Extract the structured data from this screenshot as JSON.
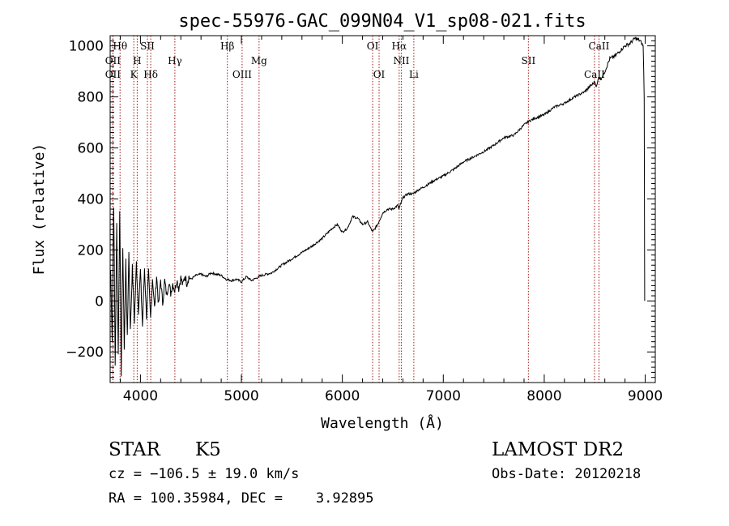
{
  "chart_data": {
    "type": "line",
    "title": "spec-55976-GAC_099N04_V1_sp08-021.fits",
    "xlabel": "Wavelength (Å)",
    "ylabel": "Flux (relative)",
    "xlim": [
      3700,
      9100
    ],
    "ylim": [
      -320,
      1040
    ],
    "xticks": [
      4000,
      5000,
      6000,
      7000,
      8000,
      9000
    ],
    "yticks": [
      -200,
      0,
      200,
      400,
      600,
      800,
      1000
    ],
    "grid": false,
    "line_color": "#000000",
    "marker_color": "#a01818",
    "series": [
      {
        "x": [
          3705,
          3720,
          3735,
          3750,
          3765,
          3780,
          3795,
          3810,
          3825,
          3840,
          3855,
          3870,
          3885,
          3900,
          3920,
          3940,
          3960,
          3980,
          4000,
          4020,
          4040,
          4060,
          4080,
          4100,
          4120,
          4140,
          4160,
          4180,
          4200,
          4220,
          4240,
          4260,
          4280,
          4300,
          4320,
          4340,
          4360,
          4380,
          4400,
          4420,
          4440,
          4460,
          4480,
          4500,
          4550,
          4600,
          4650,
          4700,
          4750,
          4800,
          4850,
          4900,
          4950,
          5000,
          5050,
          5100,
          5150,
          5200,
          5300,
          5400,
          5500,
          5600,
          5700,
          5800,
          5900,
          5950,
          6000,
          6050,
          6100,
          6150,
          6200,
          6250,
          6300,
          6350,
          6400,
          6450,
          6500,
          6550,
          6560,
          6600,
          6650,
          6700,
          6750,
          6800,
          6900,
          7000,
          7100,
          7200,
          7300,
          7400,
          7500,
          7600,
          7700,
          7800,
          7850,
          7900,
          8000,
          8100,
          8200,
          8300,
          8400,
          8450,
          8480,
          8500,
          8520,
          8540,
          8560,
          8600,
          8650,
          8700,
          8750,
          8800,
          8850,
          8900,
          8950,
          8980,
          8990,
          8995
        ],
        "y": [
          120,
          -150,
          380,
          -250,
          300,
          -200,
          350,
          -280,
          220,
          -180,
          160,
          -150,
          190,
          -120,
          130,
          -80,
          150,
          -40,
          120,
          -100,
          130,
          -60,
          110,
          -70,
          90,
          -30,
          100,
          -20,
          85,
          -10,
          80,
          20,
          75,
          30,
          70,
          40,
          85,
          50,
          90,
          60,
          100,
          70,
          95,
          85,
          100,
          105,
          95,
          110,
          105,
          100,
          85,
          80,
          85,
          75,
          95,
          80,
          90,
          100,
          110,
          140,
          165,
          190,
          215,
          245,
          285,
          300,
          270,
          285,
          330,
          325,
          300,
          310,
          270,
          300,
          345,
          360,
          360,
          375,
          360,
          405,
          420,
          420,
          435,
          445,
          470,
          490,
          515,
          545,
          565,
          585,
          610,
          640,
          650,
          690,
          705,
          715,
          730,
          760,
          775,
          800,
          820,
          840,
          850,
          860,
          840,
          880,
          870,
          900,
          950,
          960,
          980,
          1000,
          1010,
          1030,
          1020,
          1000,
          800,
          0
        ]
      }
    ],
    "lines": [
      {
        "label": "Hθ",
        "x": 3798,
        "row": 0
      },
      {
        "label": "OII",
        "x": 3727,
        "row": 1
      },
      {
        "label": "OII",
        "x": 3727,
        "row": 2
      },
      {
        "label": "H",
        "x": 3968,
        "row": 1
      },
      {
        "label": "K",
        "x": 3934,
        "row": 2
      },
      {
        "label": "SII",
        "x": 4069,
        "row": 0
      },
      {
        "label": "Hδ",
        "x": 4102,
        "row": 2
      },
      {
        "label": "Hγ",
        "x": 4341,
        "row": 1
      },
      {
        "label": "Hβ",
        "x": 4861,
        "row": 0
      },
      {
        "label": "Mg",
        "x": 5175,
        "row": 1
      },
      {
        "label": "OIII",
        "x": 5007,
        "row": 2
      },
      {
        "label": "OI",
        "x": 6300,
        "row": 0
      },
      {
        "label": "OI",
        "x": 6364,
        "row": 2
      },
      {
        "label": "Hα",
        "x": 6563,
        "row": 0
      },
      {
        "label": "NII",
        "x": 6584,
        "row": 1
      },
      {
        "label": "Li",
        "x": 6708,
        "row": 2
      },
      {
        "label": "SII",
        "x": 7843,
        "row": 1
      },
      {
        "label": "CaII",
        "x": 8542,
        "row": 0
      },
      {
        "label": "CaII",
        "x": 8498,
        "row": 2
      }
    ]
  },
  "info": {
    "class": "STAR",
    "subclass": "K5",
    "survey": "LAMOST DR2",
    "cz": "cz = −106.5 ± 19.0 km/s",
    "obsdate": "Obs-Date: 20120218",
    "radec": "RA = 100.35984, DEC =    3.92895"
  }
}
